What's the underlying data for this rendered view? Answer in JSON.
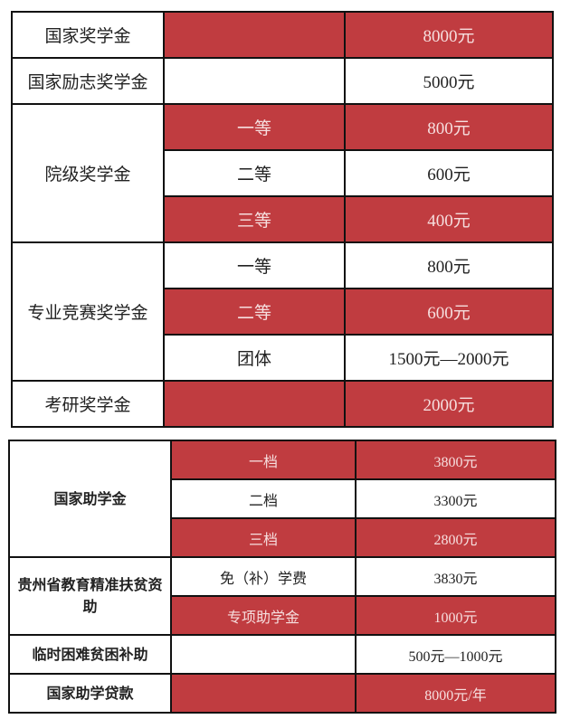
{
  "colors": {
    "accent_red": "#c03c40",
    "border": "#111111"
  },
  "scholarships": [
    {
      "name": "国家奖学金",
      "level": "",
      "amount": "8000元"
    },
    {
      "name": "国家励志奖学金",
      "level": "",
      "amount": "5000元"
    },
    {
      "name": "院级奖学金",
      "levels": [
        {
          "level": "一等",
          "amount": "800元"
        },
        {
          "level": "二等",
          "amount": "600元"
        },
        {
          "level": "三等",
          "amount": "400元"
        }
      ]
    },
    {
      "name": "专业竞赛奖学金",
      "levels": [
        {
          "level": "一等",
          "amount": "800元"
        },
        {
          "level": "二等",
          "amount": "600元"
        },
        {
          "level": "团体",
          "amount": "1500元—2000元"
        }
      ]
    },
    {
      "name": "考研奖学金",
      "level": "",
      "amount": "2000元"
    }
  ],
  "aid": [
    {
      "name": "国家助学金",
      "levels": [
        {
          "level": "一档",
          "amount": "3800元"
        },
        {
          "level": "二档",
          "amount": "3300元"
        },
        {
          "level": "三档",
          "amount": "2800元"
        }
      ]
    },
    {
      "name": "贵州省教育精准扶贫资助",
      "levels": [
        {
          "level": "免（补）学费",
          "amount": "3830元"
        },
        {
          "level": "专项助学金",
          "amount": "1000元"
        }
      ]
    },
    {
      "name": "临时困难贫困补助",
      "level": "",
      "amount": "500元—1000元"
    },
    {
      "name": "国家助学贷款",
      "level": "",
      "amount": "8000元/年"
    }
  ]
}
